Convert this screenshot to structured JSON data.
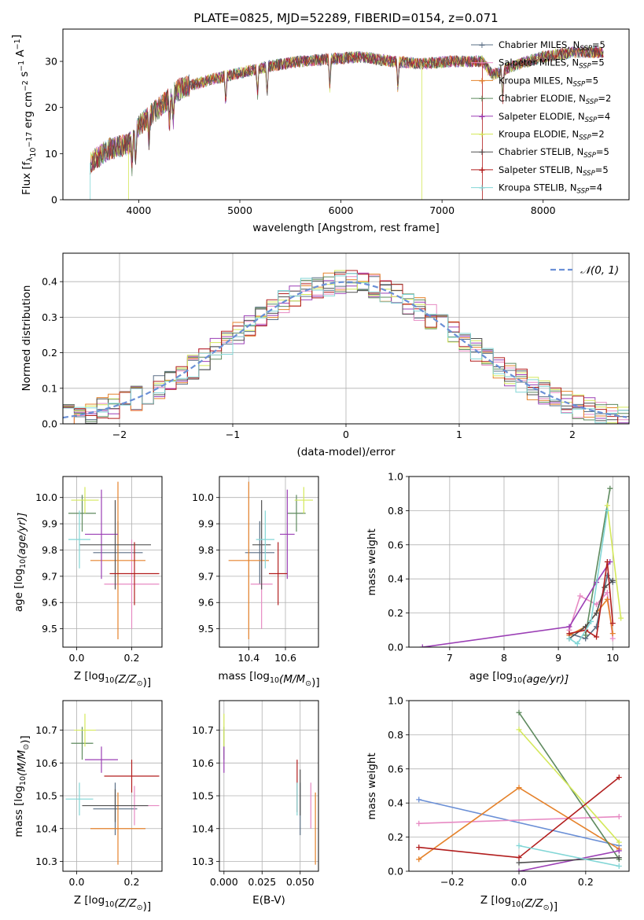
{
  "colors": {
    "Chabrier MILES": "#5a6f85",
    "Salpeter MILES": "#e78ac3",
    "Kroupa MILES": "#e5822b",
    "Chabrier ELODIE": "#5e8a5e",
    "Salpeter ELODIE": "#9b3fb5",
    "Kroupa ELODIE": "#d4e85a",
    "Chabrier STELIB": "#505050",
    "Salpeter STELIB": "#b21e1e",
    "Kroupa STELIB": "#82d6d6",
    "blue": "#6a8fd6"
  },
  "chart_data": [
    {
      "id": "spectrum",
      "type": "line",
      "title": "PLATE=0825, MJD=52289, FIBERID=0154, z=0.071",
      "xlabel": "wavelength [Angstrom, rest frame]",
      "ylabel_parts": [
        "Flux [f",
        "λ",
        "10",
        "−17",
        " erg cm",
        "−2",
        " s",
        "−1",
        " A",
        "−1",
        "]"
      ],
      "xlim": [
        3250,
        8850
      ],
      "ylim": [
        0,
        37
      ],
      "xticks": [
        4000,
        5000,
        6000,
        7000,
        8000
      ],
      "yticks": [
        0,
        10,
        20,
        30
      ],
      "legend_placement": "right",
      "continuum": [
        [
          3520,
          8
        ],
        [
          3700,
          11
        ],
        [
          3900,
          12
        ],
        [
          4000,
          16
        ],
        [
          4200,
          20
        ],
        [
          4400,
          24
        ],
        [
          4700,
          26
        ],
        [
          5000,
          27.5
        ],
        [
          5300,
          29
        ],
        [
          5600,
          30
        ],
        [
          5900,
          30.5
        ],
        [
          6200,
          31
        ],
        [
          6500,
          30
        ],
        [
          6800,
          29.5
        ],
        [
          7100,
          30
        ],
        [
          7400,
          30
        ],
        [
          7500,
          27
        ],
        [
          7700,
          29
        ],
        [
          8000,
          31
        ],
        [
          8300,
          32
        ],
        [
          8600,
          32
        ]
      ],
      "series": [
        {
          "name": "Chabrier MILES",
          "n_ssp": 5
        },
        {
          "name": "Salpeter MILES",
          "n_ssp": 5
        },
        {
          "name": "Kroupa MILES",
          "n_ssp": 5
        },
        {
          "name": "Chabrier ELODIE",
          "n_ssp": 2
        },
        {
          "name": "Salpeter ELODIE",
          "n_ssp": 4
        },
        {
          "name": "Kroupa ELODIE",
          "n_ssp": 2
        },
        {
          "name": "Chabrier STELIB",
          "n_ssp": 5
        },
        {
          "name": "Salpeter STELIB",
          "n_ssp": 5
        },
        {
          "name": "Kroupa STELIB",
          "n_ssp": 4
        }
      ]
    },
    {
      "id": "residuals",
      "type": "histogram",
      "xlabel": "(data-model)/error",
      "ylabel": "Normed distribution",
      "xlim": [
        -2.5,
        2.5
      ],
      "ylim": [
        0,
        0.48
      ],
      "xticks": [
        -2,
        -1,
        0,
        1,
        2
      ],
      "yticks": [
        0.0,
        0.1,
        0.2,
        0.3,
        0.4
      ],
      "grid": true,
      "legend_placement": "top-right",
      "reference_curve": "𝒩(0, 1)",
      "bin_width": 0.1,
      "series_names": [
        "Chabrier MILES",
        "Salpeter MILES",
        "Kroupa MILES",
        "Chabrier ELODIE",
        "Salpeter ELODIE",
        "Kroupa ELODIE",
        "Chabrier STELIB",
        "Salpeter STELIB",
        "Kroupa STELIB"
      ]
    },
    {
      "id": "z_age",
      "type": "errorbar",
      "xlabel_parts": [
        "Z [log",
        "10",
        "(Z/Z",
        "⊙",
        ")]"
      ],
      "ylabel_parts": [
        "age  [log",
        "10",
        "(age/yr)]"
      ],
      "xlim": [
        -0.05,
        0.31
      ],
      "ylim": [
        9.43,
        10.08
      ],
      "xticks": [
        0.0,
        0.2
      ],
      "yticks": [
        9.5,
        9.6,
        9.7,
        9.8,
        9.9,
        10.0
      ],
      "grid": true,
      "points": [
        {
          "series": "Chabrier MILES",
          "x": 0.15,
          "xerr": 0.09,
          "y": 9.79,
          "yerr": 0.12
        },
        {
          "series": "Salpeter MILES",
          "x": 0.2,
          "xerr": 0.1,
          "y": 9.67,
          "yerr": 0.17
        },
        {
          "series": "Kroupa MILES",
          "x": 0.15,
          "xerr": 0.1,
          "y": 9.76,
          "yerr": 0.3
        },
        {
          "series": "Chabrier ELODIE",
          "x": 0.02,
          "xerr": 0.05,
          "y": 9.94,
          "yerr": 0.07
        },
        {
          "series": "Salpeter ELODIE",
          "x": 0.09,
          "xerr": 0.06,
          "y": 9.86,
          "yerr": 0.17
        },
        {
          "series": "Kroupa ELODIE",
          "x": 0.03,
          "xerr": 0.05,
          "y": 9.99,
          "yerr": 0.05
        },
        {
          "series": "Chabrier STELIB",
          "x": 0.14,
          "xerr": 0.13,
          "y": 9.82,
          "yerr": 0.17
        },
        {
          "series": "Salpeter STELIB",
          "x": 0.21,
          "xerr": 0.09,
          "y": 9.71,
          "yerr": 0.12
        },
        {
          "series": "Kroupa STELIB",
          "x": 0.01,
          "xerr": 0.04,
          "y": 9.84,
          "yerr": 0.11
        }
      ]
    },
    {
      "id": "mass_age",
      "type": "errorbar",
      "xlabel_parts": [
        "mass [log",
        "10",
        "(M/M",
        "⊙",
        ")]"
      ],
      "ylabel": "",
      "xlim": [
        10.24,
        10.78
      ],
      "ylim": [
        9.43,
        10.08
      ],
      "xticks": [
        10.4,
        10.6
      ],
      "yticks": [
        9.5,
        9.6,
        9.7,
        9.8,
        9.9,
        10.0
      ],
      "grid": true,
      "points": [
        {
          "series": "Chabrier MILES",
          "x": 10.46,
          "xerr": 0.08,
          "y": 9.79,
          "yerr": 0.12
        },
        {
          "series": "Salpeter MILES",
          "x": 10.47,
          "xerr": 0.06,
          "y": 9.67,
          "yerr": 0.17
        },
        {
          "series": "Kroupa MILES",
          "x": 10.4,
          "xerr": 0.11,
          "y": 9.76,
          "yerr": 0.3
        },
        {
          "series": "Chabrier ELODIE",
          "x": 10.66,
          "xerr": 0.05,
          "y": 9.94,
          "yerr": 0.07
        },
        {
          "series": "Salpeter ELODIE",
          "x": 10.61,
          "xerr": 0.04,
          "y": 9.86,
          "yerr": 0.17
        },
        {
          "series": "Kroupa ELODIE",
          "x": 10.7,
          "xerr": 0.05,
          "y": 9.99,
          "yerr": 0.05
        },
        {
          "series": "Chabrier STELIB",
          "x": 10.47,
          "xerr": 0.05,
          "y": 9.82,
          "yerr": 0.17
        },
        {
          "series": "Salpeter STELIB",
          "x": 10.56,
          "xerr": 0.05,
          "y": 9.71,
          "yerr": 0.12
        },
        {
          "series": "Kroupa STELIB",
          "x": 10.49,
          "xerr": 0.05,
          "y": 9.84,
          "yerr": 0.11
        }
      ]
    },
    {
      "id": "age_weight",
      "type": "line",
      "xlabel_parts": [
        "age  [log",
        "10",
        "(age/yr)]"
      ],
      "ylabel": "mass weight",
      "xlim": [
        6.25,
        10.3
      ],
      "ylim": [
        0,
        1.0
      ],
      "xticks": [
        7,
        8,
        9,
        10
      ],
      "yticks": [
        0.0,
        0.2,
        0.4,
        0.6,
        0.8,
        1.0
      ],
      "grid": true,
      "series": [
        {
          "name": "Chabrier MILES",
          "points": [
            [
              9.2,
              0.08
            ],
            [
              9.5,
              0.05
            ],
            [
              9.7,
              0.12
            ],
            [
              9.9,
              0.42
            ],
            [
              10.0,
              0.38
            ]
          ]
        },
        {
          "name": "Salpeter MILES",
          "points": [
            [
              9.2,
              0.1
            ],
            [
              9.4,
              0.3
            ],
            [
              9.7,
              0.25
            ],
            [
              9.9,
              0.32
            ],
            [
              10.0,
              0.05
            ]
          ]
        },
        {
          "name": "Kroupa MILES",
          "points": [
            [
              9.2,
              0.07
            ],
            [
              9.5,
              0.12
            ],
            [
              9.7,
              0.2
            ],
            [
              9.9,
              0.28
            ],
            [
              10.0,
              0.08
            ]
          ]
        },
        {
          "name": "Chabrier ELODIE",
          "points": [
            [
              9.5,
              0.07
            ],
            [
              9.95,
              0.93
            ]
          ]
        },
        {
          "name": "Salpeter ELODIE",
          "points": [
            [
              6.5,
              0.0
            ],
            [
              9.2,
              0.12
            ],
            [
              9.7,
              0.38
            ],
            [
              9.95,
              0.5
            ]
          ]
        },
        {
          "name": "Kroupa ELODIE",
          "points": [
            [
              9.9,
              0.83
            ],
            [
              10.15,
              0.17
            ]
          ]
        },
        {
          "name": "Chabrier STELIB",
          "points": [
            [
              9.2,
              0.05
            ],
            [
              9.5,
              0.12
            ],
            [
              9.7,
              0.2
            ],
            [
              9.85,
              0.35
            ],
            [
              10.0,
              0.39
            ]
          ]
        },
        {
          "name": "Salpeter STELIB",
          "points": [
            [
              9.2,
              0.08
            ],
            [
              9.5,
              0.1
            ],
            [
              9.7,
              0.06
            ],
            [
              9.9,
              0.5
            ],
            [
              10.0,
              0.14
            ]
          ]
        },
        {
          "name": "Kroupa STELIB",
          "points": [
            [
              9.2,
              0.05
            ],
            [
              9.35,
              0.02
            ],
            [
              9.6,
              0.15
            ],
            [
              9.9,
              0.8
            ]
          ]
        }
      ]
    },
    {
      "id": "z_mass",
      "type": "errorbar",
      "xlabel_parts": [
        "Z [log",
        "10",
        "(Z/Z",
        "⊙",
        ")]"
      ],
      "ylabel_parts": [
        "mass [log",
        "10",
        "(M/M",
        "⊙",
        ")]"
      ],
      "xlim": [
        -0.05,
        0.31
      ],
      "ylim": [
        10.27,
        10.79
      ],
      "xticks": [
        0.0,
        0.2
      ],
      "yticks": [
        10.3,
        10.4,
        10.5,
        10.6,
        10.7
      ],
      "grid": true,
      "points": [
        {
          "series": "Chabrier MILES",
          "x": 0.14,
          "xerr": 0.08,
          "y": 10.46,
          "yerr": 0.08
        },
        {
          "series": "Salpeter MILES",
          "x": 0.21,
          "xerr": 0.09,
          "y": 10.47,
          "yerr": 0.06
        },
        {
          "series": "Kroupa MILES",
          "x": 0.15,
          "xerr": 0.1,
          "y": 10.4,
          "yerr": 0.11
        },
        {
          "series": "Chabrier ELODIE",
          "x": 0.02,
          "xerr": 0.04,
          "y": 10.66,
          "yerr": 0.05
        },
        {
          "series": "Salpeter ELODIE",
          "x": 0.09,
          "xerr": 0.06,
          "y": 10.61,
          "yerr": 0.04
        },
        {
          "series": "Kroupa ELODIE",
          "x": 0.03,
          "xerr": 0.04,
          "y": 10.7,
          "yerr": 0.05
        },
        {
          "series": "Chabrier STELIB",
          "x": 0.14,
          "xerr": 0.12,
          "y": 10.47,
          "yerr": 0.05
        },
        {
          "series": "Salpeter STELIB",
          "x": 0.2,
          "xerr": 0.1,
          "y": 10.56,
          "yerr": 0.05
        },
        {
          "series": "Kroupa STELIB",
          "x": 0.01,
          "xerr": 0.05,
          "y": 10.49,
          "yerr": 0.05
        }
      ]
    },
    {
      "id": "ebv_mass",
      "type": "errorbar",
      "xlabel": "E(B-V)",
      "ylabel": "",
      "xlim": [
        -0.003,
        0.062
      ],
      "ylim": [
        10.27,
        10.79
      ],
      "xticks": [
        0.0,
        0.025,
        0.05
      ],
      "yticks": [
        10.3,
        10.4,
        10.5,
        10.6,
        10.7
      ],
      "grid": true,
      "points": [
        {
          "series": "Chabrier MILES",
          "x": 0.05,
          "xerr": 0.0,
          "y": 10.46,
          "yerr": 0.08
        },
        {
          "series": "Salpeter MILES",
          "x": 0.057,
          "xerr": 0.0,
          "y": 10.47,
          "yerr": 0.07
        },
        {
          "series": "Kroupa MILES",
          "x": 0.06,
          "xerr": 0.0,
          "y": 10.4,
          "yerr": 0.11
        },
        {
          "series": "Chabrier ELODIE",
          "x": 0.0,
          "xerr": 0.0,
          "y": 10.66,
          "yerr": 0.05
        },
        {
          "series": "Salpeter ELODIE",
          "x": 0.0,
          "xerr": 0.0,
          "y": 10.61,
          "yerr": 0.04
        },
        {
          "series": "Kroupa ELODIE",
          "x": 0.0,
          "xerr": 0.0,
          "y": 10.7,
          "yerr": 0.05
        },
        {
          "series": "Chabrier STELIB",
          "x": 0.05,
          "xerr": 0.0,
          "y": 10.51,
          "yerr": 0.07
        },
        {
          "series": "Salpeter STELIB",
          "x": 0.048,
          "xerr": 0.0,
          "y": 10.53,
          "yerr": 0.08
        },
        {
          "series": "Kroupa STELIB",
          "x": 0.048,
          "xerr": 0.0,
          "y": 10.49,
          "yerr": 0.05
        }
      ]
    },
    {
      "id": "z_weight",
      "type": "line",
      "xlabel_parts": [
        "Z [log",
        "10",
        "(Z/Z",
        "⊙",
        ")]"
      ],
      "ylabel": "mass weight",
      "xlim": [
        -0.33,
        0.33
      ],
      "ylim": [
        0,
        1.0
      ],
      "xticks": [
        -0.2,
        0.0,
        0.2
      ],
      "yticks": [
        0.0,
        0.2,
        0.4,
        0.6,
        0.8,
        1.0
      ],
      "grid": true,
      "series": [
        {
          "name": "blue",
          "points": [
            [
              -0.3,
              0.42
            ],
            [
              0.3,
              0.15
            ]
          ]
        },
        {
          "name": "Salpeter MILES",
          "points": [
            [
              -0.3,
              0.28
            ],
            [
              0.3,
              0.32
            ]
          ]
        },
        {
          "name": "Kroupa MILES",
          "points": [
            [
              -0.3,
              0.07
            ],
            [
              0.0,
              0.49
            ],
            [
              0.3,
              0.13
            ]
          ]
        },
        {
          "name": "Chabrier ELODIE",
          "points": [
            [
              0.0,
              0.93
            ],
            [
              0.3,
              0.07
            ]
          ]
        },
        {
          "name": "Salpeter ELODIE",
          "points": [
            [
              0.0,
              0.0
            ],
            [
              0.3,
              0.12
            ]
          ]
        },
        {
          "name": "Kroupa ELODIE",
          "points": [
            [
              0.0,
              0.83
            ],
            [
              0.3,
              0.17
            ]
          ]
        },
        {
          "name": "Chabrier STELIB",
          "points": [
            [
              0.0,
              0.05
            ],
            [
              0.3,
              0.08
            ]
          ]
        },
        {
          "name": "Salpeter STELIB",
          "points": [
            [
              -0.3,
              0.14
            ],
            [
              0.0,
              0.08
            ],
            [
              0.3,
              0.55
            ]
          ]
        },
        {
          "name": "Kroupa STELIB",
          "points": [
            [
              0.0,
              0.15
            ],
            [
              0.3,
              0.03
            ]
          ]
        }
      ]
    }
  ]
}
